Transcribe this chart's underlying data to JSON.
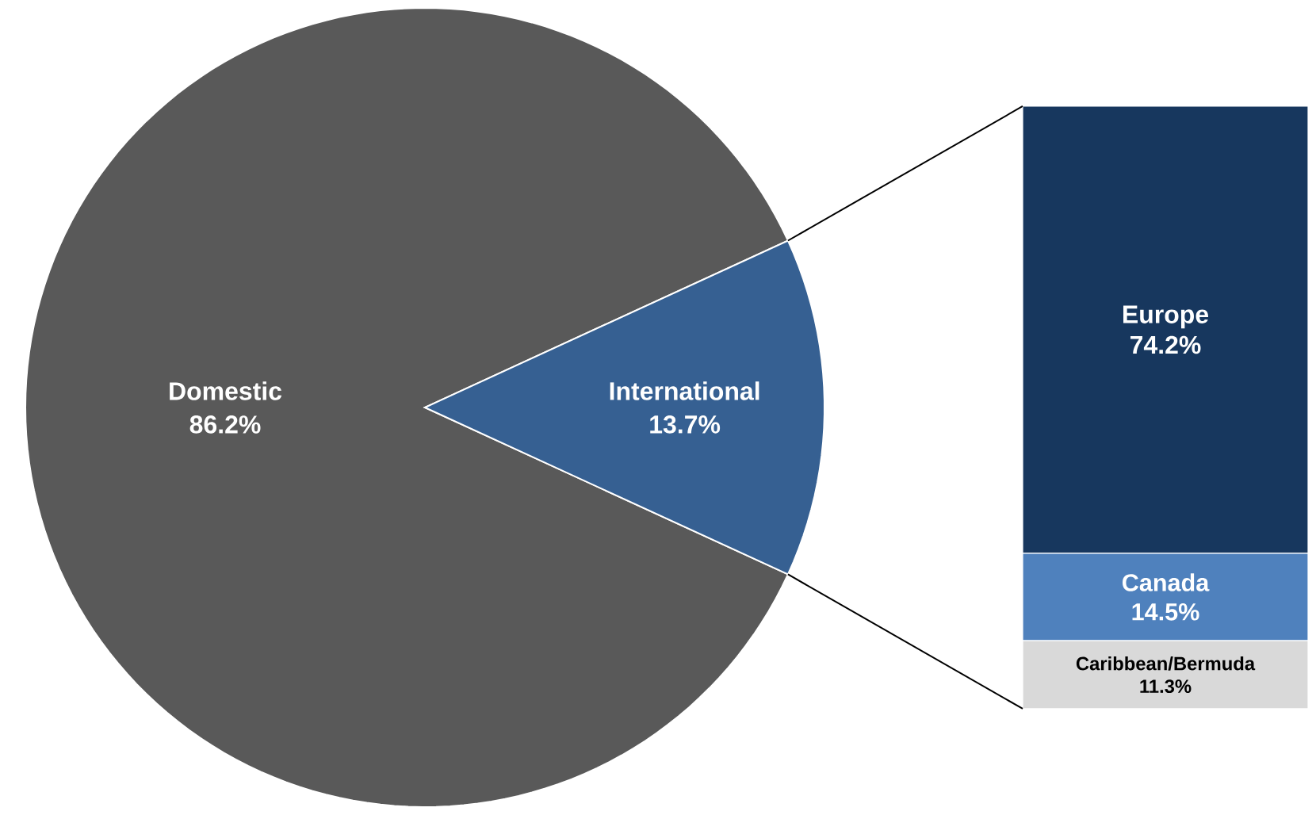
{
  "chart_data": [
    {
      "type": "pie",
      "categories": [
        "Domestic",
        "International"
      ],
      "values": [
        86.2,
        13.7
      ],
      "colors": [
        "#595959",
        "#366092"
      ],
      "value_labels": [
        "86.2%",
        "13.7%"
      ]
    },
    {
      "type": "bar",
      "stacked": true,
      "categories": [
        null
      ],
      "series": [
        {
          "name": "Caribbean/Bermuda",
          "color": "#d9d9d9",
          "values": [
            11.3
          ],
          "value_labels": [
            "11.3%"
          ]
        },
        {
          "name": "Canada",
          "color": "#4f81bd",
          "values": [
            14.5
          ],
          "value_labels": [
            "14.5%"
          ]
        },
        {
          "name": "Europe",
          "color": "#17375e",
          "values": [
            74.2
          ],
          "value_labels": [
            "74.2%"
          ]
        }
      ]
    }
  ]
}
